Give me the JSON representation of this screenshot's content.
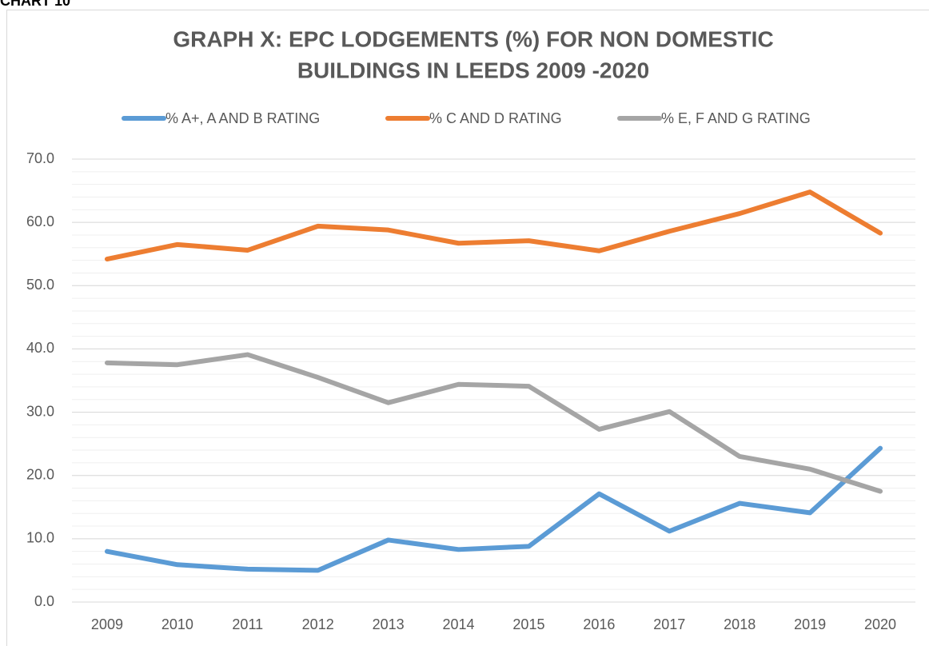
{
  "caption": "CHART 10",
  "chart_data": {
    "type": "line",
    "title": [
      "GRAPH X: EPC LODGEMENTS (%)  FOR NON DOMESTIC",
      "BUILDINGS IN LEEDS 2009 -2020"
    ],
    "categories": [
      "2009",
      "2010",
      "2011",
      "2012",
      "2013",
      "2014",
      "2015",
      "2016",
      "2017",
      "2018",
      "2019",
      "2020"
    ],
    "series": [
      {
        "name": "% A+, A AND B RATING",
        "color": "#5b9bd5",
        "values": [
          8.0,
          5.9,
          5.2,
          5.0,
          9.8,
          8.3,
          8.8,
          17.1,
          11.2,
          15.6,
          14.1,
          24.3
        ]
      },
      {
        "name": "% C AND D RATING",
        "color": "#ed7d31",
        "values": [
          54.2,
          56.5,
          55.6,
          59.4,
          58.8,
          56.7,
          57.1,
          55.5,
          58.6,
          61.4,
          64.8,
          58.3
        ]
      },
      {
        "name": "% E, F AND G RATING",
        "color": "#a5a5a5",
        "values": [
          37.8,
          37.5,
          39.1,
          35.5,
          31.5,
          34.4,
          34.1,
          27.3,
          30.1,
          23.0,
          21.0,
          17.5
        ]
      }
    ],
    "ylim": [
      0,
      70
    ],
    "yticks": [
      {
        "value": 0,
        "label": "0.0"
      },
      {
        "value": 10,
        "label": "10.0"
      },
      {
        "value": 20,
        "label": "20.0"
      },
      {
        "value": 30,
        "label": "30.0"
      },
      {
        "value": 40,
        "label": "40.0"
      },
      {
        "value": 50,
        "label": "50.0"
      },
      {
        "value": 60,
        "label": "60.0"
      },
      {
        "value": 70,
        "label": "70.0"
      }
    ],
    "minor_grid": 2,
    "grid": true,
    "legend": "top"
  }
}
